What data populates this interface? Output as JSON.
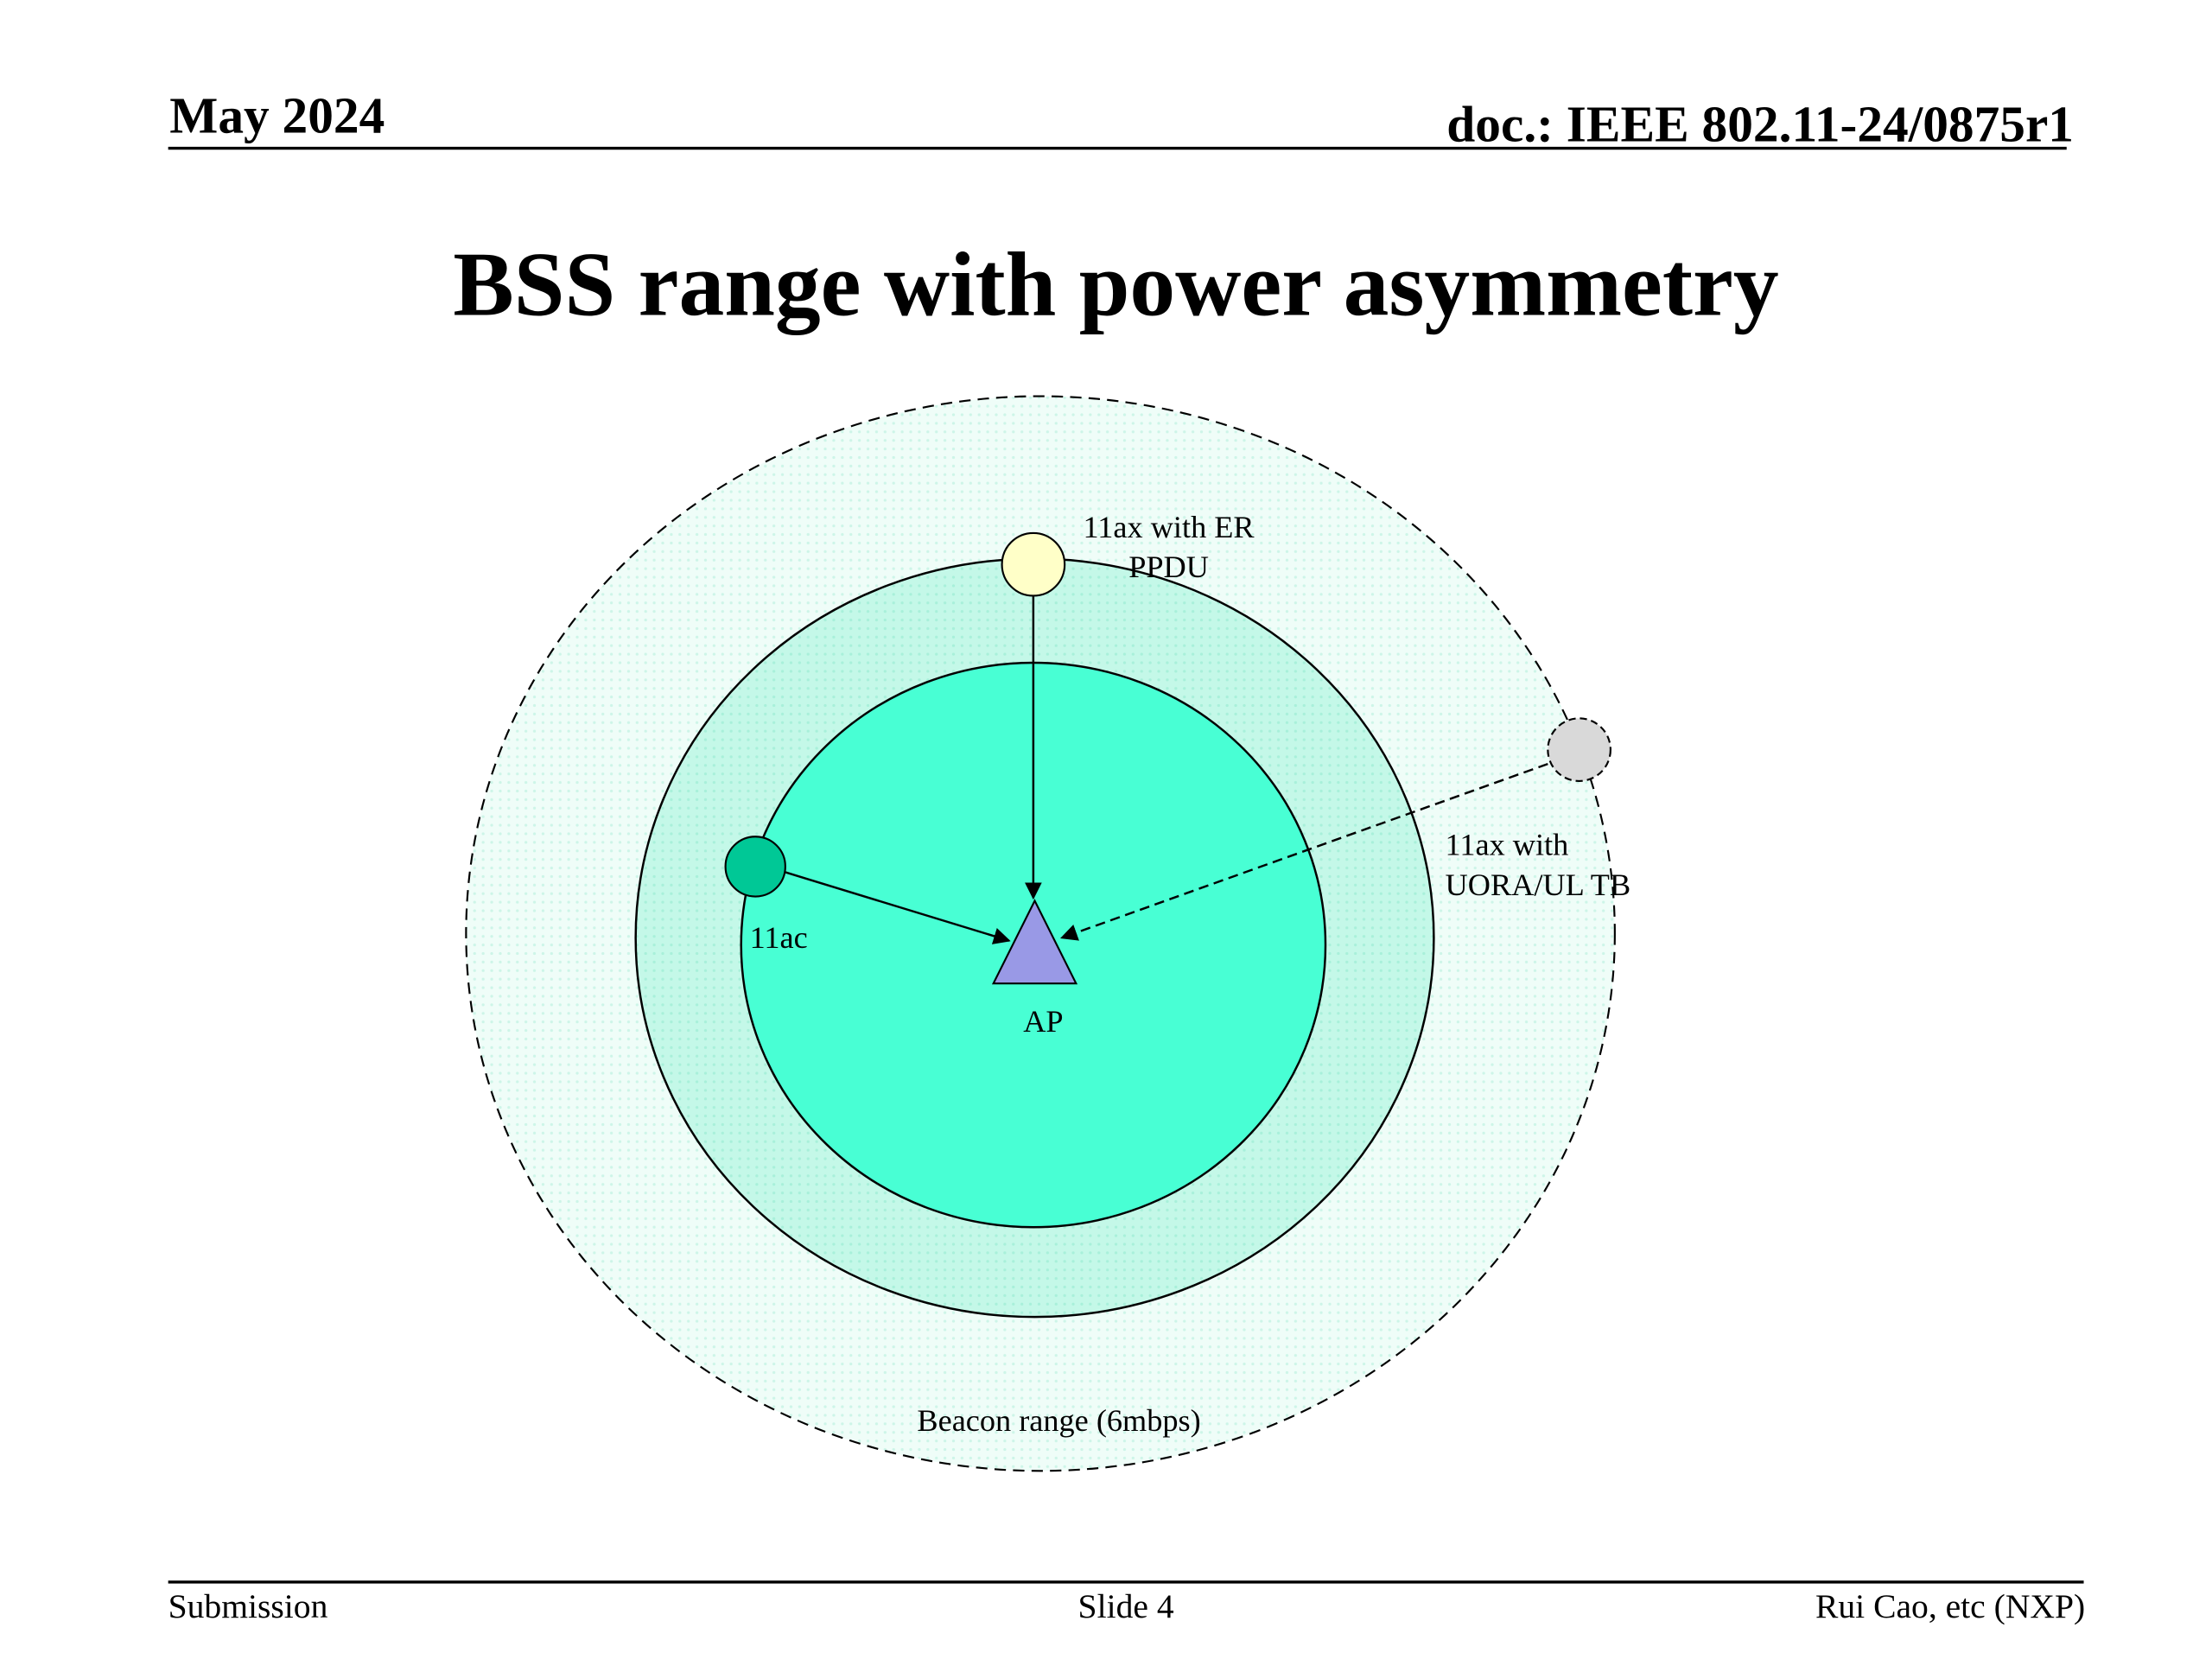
{
  "header": {
    "date": "May 2024",
    "doc": "doc.: IEEE 802.11-24/0875r1"
  },
  "title": "BSS range with power asymmetry",
  "diagram": {
    "er_ppdu": [
      "11ax with ER",
      "PPDU"
    ],
    "uora": [
      "11ax with",
      "UORA/UL TB"
    ],
    "sta_11ac": "11ac",
    "ap": "AP",
    "beacon": "Beacon range (6mbps)"
  },
  "footer": {
    "left": "Submission",
    "center": "Slide 4",
    "right": "Rui Cao, etc (NXP)"
  }
}
